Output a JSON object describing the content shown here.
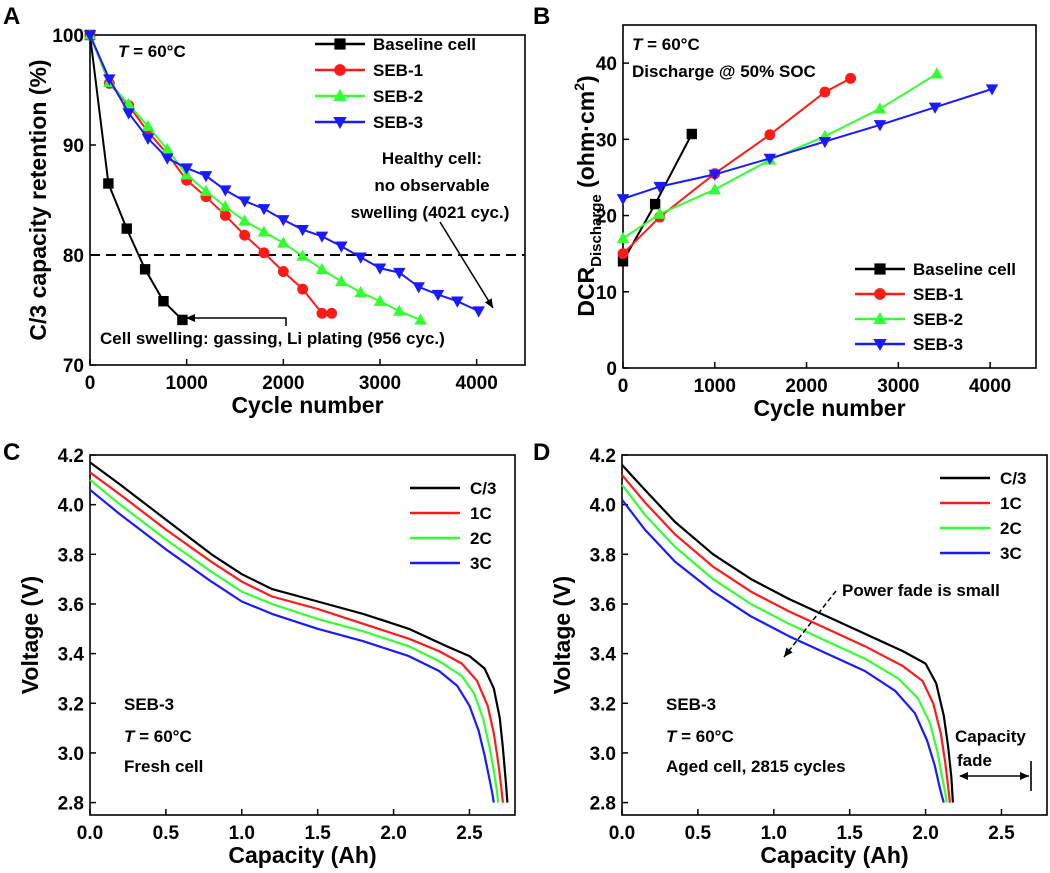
{
  "colors": {
    "baseline": "#000000",
    "seb1": "#ff1a1a",
    "seb2": "#33ff33",
    "seb3": "#1a1aff",
    "c3": "#000000",
    "c1": "#ff1a1a",
    "c2": "#33ff33",
    "c3rate": "#1a1aff"
  },
  "chart_data": [
    {
      "panel": "A",
      "type": "line",
      "xlabel": "Cycle number",
      "ylabel": "C/3 capacity retention (%)",
      "xlim": [
        0,
        4500
      ],
      "ylim": [
        70,
        100
      ],
      "xticks": [
        0,
        1000,
        2000,
        3000,
        4000
      ],
      "yticks": [
        70,
        80,
        90,
        100
      ],
      "reference_line": {
        "y": 80,
        "style": "dashed"
      },
      "legend": [
        "Baseline cell",
        "SEB-1",
        "SEB-2",
        "SEB-3"
      ],
      "series": [
        {
          "name": "Baseline cell",
          "marker": "square",
          "x": [
            0,
            190,
            380,
            570,
            760,
            956
          ],
          "y": [
            100,
            86.5,
            82.4,
            78.7,
            75.8,
            74.1
          ]
        },
        {
          "name": "SEB-1",
          "marker": "circle",
          "x": [
            0,
            200,
            400,
            600,
            800,
            1000,
            1200,
            1400,
            1600,
            1800,
            2000,
            2200,
            2400,
            2500
          ],
          "y": [
            100,
            95.6,
            93.6,
            91.2,
            89.2,
            86.8,
            85.3,
            83.6,
            81.8,
            80.2,
            78.5,
            76.9,
            74.7,
            74.7
          ]
        },
        {
          "name": "SEB-2",
          "marker": "triangle-up",
          "x": [
            0,
            200,
            400,
            600,
            800,
            1000,
            1200,
            1400,
            1600,
            1800,
            2000,
            2200,
            2400,
            2600,
            2800,
            3000,
            3200,
            3420
          ],
          "y": [
            100,
            95.7,
            93.7,
            91.7,
            89.6,
            87.3,
            85.8,
            84.4,
            83.1,
            82.1,
            81.1,
            79.9,
            78.7,
            77.6,
            76.6,
            75.8,
            74.9,
            74.1
          ]
        },
        {
          "name": "SEB-3",
          "marker": "triangle-down",
          "x": [
            0,
            200,
            400,
            600,
            800,
            1000,
            1200,
            1400,
            1600,
            1800,
            2000,
            2200,
            2400,
            2600,
            2800,
            3000,
            3200,
            3400,
            3600,
            3800,
            4021
          ],
          "y": [
            100,
            96,
            92.9,
            90.6,
            88.8,
            87.9,
            87.2,
            85.9,
            84.9,
            84.2,
            83.2,
            82.3,
            81.7,
            80.8,
            79.8,
            78.8,
            78.4,
            77.1,
            76.4,
            75.8,
            74.9
          ]
        }
      ],
      "annotations": {
        "temp_prefix": "T",
        "temp_suffix": " = 60°C",
        "healthy_line1": "Healthy cell:",
        "healthy_line2": "no observable",
        "healthy_line3": "swelling (4021 cyc.)",
        "swelling": "Cell swelling: gassing, Li plating (956 cyc.)"
      }
    },
    {
      "panel": "B",
      "type": "line",
      "xlabel": "Cycle number",
      "ylabel_main": "DCR",
      "ylabel_sub": "Discharge",
      "ylabel_units": " (ohm·cm",
      "ylabel_sup": "2",
      "ylabel_close": ")",
      "xlim": [
        0,
        4500
      ],
      "ylim": [
        0,
        45
      ],
      "xticks": [
        0,
        1000,
        2000,
        3000,
        4000
      ],
      "yticks": [
        0,
        10,
        20,
        30,
        40
      ],
      "legend": [
        "Baseline cell",
        "SEB-1",
        "SEB-2",
        "SEB-3"
      ],
      "series": [
        {
          "name": "Baseline cell",
          "marker": "square",
          "x": [
            0,
            350,
            750
          ],
          "y": [
            14,
            21.5,
            30.7
          ]
        },
        {
          "name": "SEB-1",
          "marker": "circle",
          "x": [
            0,
            400,
            1000,
            1600,
            2200,
            2480
          ],
          "y": [
            15,
            19.8,
            25.5,
            30.6,
            36.2,
            38
          ]
        },
        {
          "name": "SEB-2",
          "marker": "triangle-up",
          "x": [
            0,
            400,
            1000,
            1600,
            2200,
            2800,
            3420
          ],
          "y": [
            17,
            20.2,
            23.4,
            27.3,
            30.4,
            34,
            38.6
          ]
        },
        {
          "name": "SEB-3",
          "marker": "triangle-down",
          "x": [
            0,
            400,
            1000,
            1600,
            2200,
            2800,
            3400,
            4021
          ],
          "y": [
            22.2,
            23.8,
            25.4,
            27.5,
            29.7,
            31.9,
            34.2,
            36.6
          ]
        }
      ],
      "annotations": {
        "temp_prefix": "T",
        "temp_suffix": " = 60°C",
        "condition": "Discharge @ 50% SOC"
      }
    },
    {
      "panel": "C",
      "type": "line",
      "xlabel": "Capacity (Ah)",
      "ylabel": "Voltage (V)",
      "xlim": [
        0,
        2.8
      ],
      "ylim": [
        2.75,
        4.2
      ],
      "xticks": [
        0.0,
        0.5,
        1.0,
        1.5,
        2.0,
        2.5
      ],
      "xtick_labels": [
        "0.0",
        "0.5",
        "1.0",
        "1.5",
        "2.0",
        "2.5"
      ],
      "yticks": [
        2.8,
        3.0,
        3.2,
        3.4,
        3.6,
        3.8,
        4.0,
        4.2
      ],
      "ytick_labels": [
        "2.8",
        "3.0",
        "3.2",
        "3.4",
        "3.6",
        "3.8",
        "4.0",
        "4.2"
      ],
      "legend": [
        "C/3",
        "1C",
        "2C",
        "3C"
      ],
      "series": [
        {
          "name": "C/3",
          "x": [
            0,
            0.2,
            0.5,
            0.8,
            1.0,
            1.2,
            1.5,
            1.8,
            2.1,
            2.35,
            2.5,
            2.6,
            2.66,
            2.7,
            2.72,
            2.74,
            2.75
          ],
          "y": [
            4.17,
            4.08,
            3.94,
            3.8,
            3.72,
            3.66,
            3.61,
            3.56,
            3.5,
            3.43,
            3.39,
            3.34,
            3.26,
            3.14,
            3.02,
            2.88,
            2.8
          ]
        },
        {
          "name": "1C",
          "x": [
            0,
            0.2,
            0.5,
            0.8,
            1.0,
            1.2,
            1.5,
            1.8,
            2.1,
            2.3,
            2.45,
            2.55,
            2.62,
            2.66,
            2.69,
            2.71,
            2.72
          ],
          "y": [
            4.13,
            4.04,
            3.9,
            3.77,
            3.69,
            3.63,
            3.58,
            3.52,
            3.46,
            3.41,
            3.36,
            3.29,
            3.19,
            3.08,
            2.96,
            2.86,
            2.8
          ]
        },
        {
          "name": "2C",
          "x": [
            0,
            0.2,
            0.5,
            0.8,
            1.0,
            1.2,
            1.5,
            1.8,
            2.1,
            2.3,
            2.45,
            2.53,
            2.59,
            2.63,
            2.66,
            2.68,
            2.69
          ],
          "y": [
            4.1,
            4.0,
            3.86,
            3.73,
            3.65,
            3.6,
            3.54,
            3.49,
            3.43,
            3.37,
            3.31,
            3.24,
            3.14,
            3.03,
            2.93,
            2.85,
            2.8
          ]
        },
        {
          "name": "3C",
          "x": [
            0,
            0.2,
            0.5,
            0.8,
            1.0,
            1.2,
            1.5,
            1.8,
            2.1,
            2.3,
            2.42,
            2.5,
            2.56,
            2.6,
            2.63,
            2.65,
            2.66
          ],
          "y": [
            4.06,
            3.96,
            3.82,
            3.69,
            3.61,
            3.56,
            3.5,
            3.45,
            3.39,
            3.33,
            3.27,
            3.19,
            3.09,
            2.99,
            2.9,
            2.84,
            2.8
          ]
        }
      ],
      "annotations": {
        "cell": "SEB-3",
        "temp_prefix": "T",
        "temp_suffix": " = 60°C",
        "state": "Fresh cell"
      }
    },
    {
      "panel": "D",
      "type": "line",
      "xlabel": "Capacity (Ah)",
      "ylabel": "Voltage (V)",
      "xlim": [
        0,
        2.8
      ],
      "ylim": [
        2.75,
        4.2
      ],
      "xticks": [
        0.0,
        0.5,
        1.0,
        1.5,
        2.0,
        2.5
      ],
      "xtick_labels": [
        "0.0",
        "0.5",
        "1.0",
        "1.5",
        "2.0",
        "2.5"
      ],
      "yticks": [
        2.8,
        3.0,
        3.2,
        3.4,
        3.6,
        3.8,
        4.0,
        4.2
      ],
      "ytick_labels": [
        "2.8",
        "3.0",
        "3.2",
        "3.4",
        "3.6",
        "3.8",
        "4.0",
        "4.2"
      ],
      "legend": [
        "C/3",
        "1C",
        "2C",
        "3C"
      ],
      "series": [
        {
          "name": "C/3",
          "x": [
            0,
            0.15,
            0.35,
            0.6,
            0.85,
            1.1,
            1.35,
            1.6,
            1.85,
            2.0,
            2.07,
            2.12,
            2.15,
            2.17,
            2.18
          ],
          "y": [
            4.16,
            4.06,
            3.93,
            3.8,
            3.7,
            3.62,
            3.55,
            3.48,
            3.41,
            3.36,
            3.28,
            3.15,
            3.02,
            2.9,
            2.8
          ]
        },
        {
          "name": "1C",
          "x": [
            0,
            0.15,
            0.35,
            0.6,
            0.85,
            1.1,
            1.35,
            1.6,
            1.85,
            1.98,
            2.05,
            2.1,
            2.13,
            2.15,
            2.16
          ],
          "y": [
            4.12,
            4.01,
            3.88,
            3.75,
            3.65,
            3.57,
            3.5,
            3.43,
            3.35,
            3.29,
            3.2,
            3.08,
            2.96,
            2.86,
            2.8
          ]
        },
        {
          "name": "2C",
          "x": [
            0,
            0.15,
            0.35,
            0.6,
            0.85,
            1.1,
            1.35,
            1.6,
            1.82,
            1.95,
            2.03,
            2.08,
            2.11,
            2.13,
            2.14
          ],
          "y": [
            4.08,
            3.96,
            3.83,
            3.7,
            3.6,
            3.52,
            3.45,
            3.38,
            3.3,
            3.22,
            3.12,
            3.0,
            2.9,
            2.84,
            2.8
          ]
        },
        {
          "name": "3C",
          "x": [
            0,
            0.15,
            0.35,
            0.6,
            0.85,
            1.1,
            1.35,
            1.6,
            1.8,
            1.93,
            2.01,
            2.06,
            2.09,
            2.11,
            2.12
          ],
          "y": [
            4.02,
            3.9,
            3.77,
            3.65,
            3.55,
            3.47,
            3.4,
            3.33,
            3.25,
            3.16,
            3.05,
            2.95,
            2.87,
            2.82,
            2.8
          ]
        }
      ],
      "annotations": {
        "cell": "SEB-3",
        "temp_prefix": "T",
        "temp_suffix": " = 60°C",
        "state": "Aged cell, 2815 cycles",
        "power_fade": "Power fade is small",
        "capacity_fade_line1": "Capacity",
        "capacity_fade_line2": "fade"
      }
    }
  ]
}
